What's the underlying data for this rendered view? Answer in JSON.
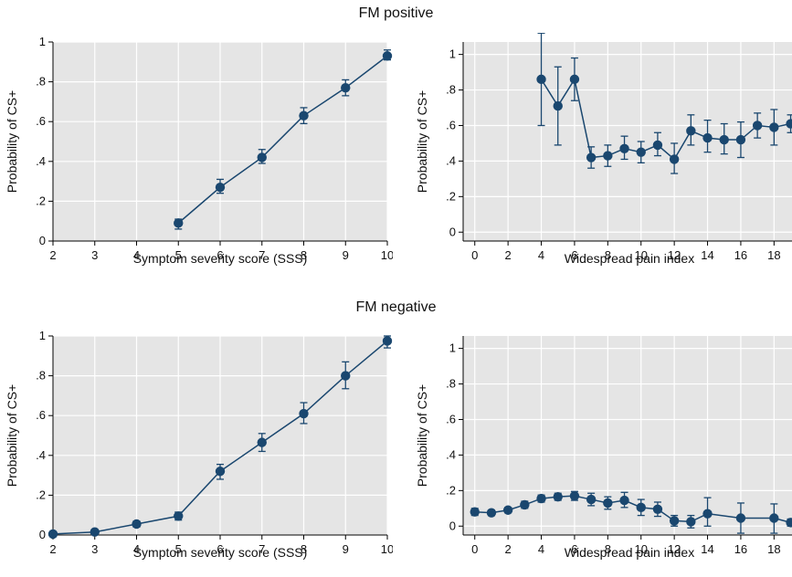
{
  "sections": {
    "top_title": "FM positive",
    "bottom_title": "FM negative"
  },
  "style": {
    "plot_bg": "#e5e5e5",
    "grid": "#ffffff",
    "series_color": "#1a476f"
  },
  "chart_data": [
    {
      "type": "line",
      "section": "FM positive",
      "xlabel": "Symptom severity score (SSS)",
      "ylabel": "Probability of CS+",
      "xlim": [
        2,
        10
      ],
      "ylim": [
        0,
        1
      ],
      "xticks": [
        2,
        3,
        4,
        5,
        6,
        7,
        8,
        9,
        10
      ],
      "xtick_labels": [
        "2",
        "3",
        "4",
        "5",
        "6",
        "7",
        "8",
        "9",
        "10"
      ],
      "yticks": [
        0,
        0.2,
        0.4,
        0.6,
        0.8,
        1
      ],
      "ytick_labels": [
        "0",
        ".2",
        ".4",
        ".6",
        ".8",
        "1"
      ],
      "grid": true,
      "x": [
        5,
        6,
        7,
        8,
        9,
        10
      ],
      "y": [
        0.09,
        0.27,
        0.42,
        0.63,
        0.77,
        0.93
      ],
      "lower": [
        0.06,
        0.24,
        0.39,
        0.59,
        0.73,
        0.91
      ],
      "upper": [
        0.11,
        0.31,
        0.46,
        0.67,
        0.81,
        0.96
      ]
    },
    {
      "type": "line",
      "section": "FM positive",
      "xlabel": "Widespread pain index",
      "ylabel": "Probability of CS+",
      "xlim": [
        -0.7,
        19.3
      ],
      "ylim": [
        -0.05,
        1.07
      ],
      "xticks": [
        0,
        2,
        4,
        6,
        8,
        10,
        12,
        14,
        16,
        18
      ],
      "xtick_labels": [
        "0",
        "2",
        "4",
        "6",
        "8",
        "10",
        "12",
        "14",
        "16",
        "18"
      ],
      "yticks": [
        0,
        0.2,
        0.4,
        0.6,
        0.8,
        1
      ],
      "ytick_labels": [
        "0",
        ".2",
        ".4",
        ".6",
        ".8",
        "1"
      ],
      "grid": true,
      "x": [
        4,
        5,
        6,
        7,
        8,
        9,
        10,
        11,
        12,
        13,
        14,
        15,
        16,
        17,
        18,
        19
      ],
      "y": [
        0.86,
        0.71,
        0.86,
        0.42,
        0.43,
        0.47,
        0.45,
        0.49,
        0.41,
        0.57,
        0.53,
        0.52,
        0.52,
        0.6,
        0.59,
        0.61
      ],
      "lower": [
        0.6,
        0.49,
        0.74,
        0.36,
        0.37,
        0.41,
        0.39,
        0.43,
        0.33,
        0.49,
        0.45,
        0.44,
        0.42,
        0.53,
        0.49,
        0.56
      ],
      "upper": [
        1.12,
        0.93,
        0.98,
        0.48,
        0.49,
        0.54,
        0.51,
        0.56,
        0.5,
        0.66,
        0.63,
        0.61,
        0.62,
        0.67,
        0.69,
        0.66
      ]
    },
    {
      "type": "line",
      "section": "FM negative",
      "xlabel": "Symptom severity score (SSS)",
      "ylabel": "Probability of CS+",
      "xlim": [
        2,
        10
      ],
      "ylim": [
        0,
        1
      ],
      "xticks": [
        2,
        3,
        4,
        5,
        6,
        7,
        8,
        9,
        10
      ],
      "xtick_labels": [
        "2",
        "3",
        "4",
        "5",
        "6",
        "7",
        "8",
        "9",
        "10"
      ],
      "yticks": [
        0,
        0.2,
        0.4,
        0.6,
        0.8,
        1
      ],
      "ytick_labels": [
        "0",
        ".2",
        ".4",
        ".6",
        ".8",
        "1"
      ],
      "grid": true,
      "x": [
        2,
        3,
        4,
        5,
        6,
        7,
        8,
        9,
        10
      ],
      "y": [
        0.005,
        0.015,
        0.055,
        0.095,
        0.32,
        0.465,
        0.61,
        0.8,
        0.975
      ],
      "lower": [
        0.0,
        0.005,
        0.04,
        0.075,
        0.28,
        0.42,
        0.56,
        0.735,
        0.94
      ],
      "upper": [
        0.01,
        0.025,
        0.07,
        0.115,
        0.355,
        0.51,
        0.665,
        0.87,
        1.0
      ]
    },
    {
      "type": "line",
      "section": "FM negative",
      "xlabel": "Widespread pain index",
      "ylabel": "Probability of CS+",
      "xlim": [
        -0.7,
        19.3
      ],
      "ylim": [
        -0.05,
        1.07
      ],
      "xticks": [
        0,
        2,
        4,
        6,
        8,
        10,
        12,
        14,
        16,
        18
      ],
      "xtick_labels": [
        "0",
        "2",
        "4",
        "6",
        "8",
        "10",
        "12",
        "14",
        "16",
        "18"
      ],
      "yticks": [
        0,
        0.2,
        0.4,
        0.6,
        0.8,
        1
      ],
      "ytick_labels": [
        "0",
        ".2",
        ".4",
        ".6",
        ".8",
        "1"
      ],
      "grid": true,
      "x": [
        0,
        1,
        2,
        3,
        4,
        5,
        6,
        7,
        8,
        9,
        10,
        11,
        12,
        13,
        14,
        16,
        18,
        19
      ],
      "y": [
        0.08,
        0.075,
        0.09,
        0.12,
        0.155,
        0.165,
        0.17,
        0.15,
        0.13,
        0.145,
        0.105,
        0.095,
        0.03,
        0.025,
        0.07,
        0.045,
        0.045,
        0.02
      ],
      "lower": [
        0.06,
        0.06,
        0.075,
        0.1,
        0.135,
        0.145,
        0.145,
        0.115,
        0.095,
        0.105,
        0.06,
        0.055,
        0.0,
        -0.01,
        0.0,
        -0.04,
        -0.04,
        0.0
      ],
      "upper": [
        0.1,
        0.09,
        0.105,
        0.14,
        0.175,
        0.185,
        0.195,
        0.185,
        0.165,
        0.19,
        0.15,
        0.135,
        0.06,
        0.06,
        0.16,
        0.13,
        0.125,
        0.04
      ]
    }
  ]
}
